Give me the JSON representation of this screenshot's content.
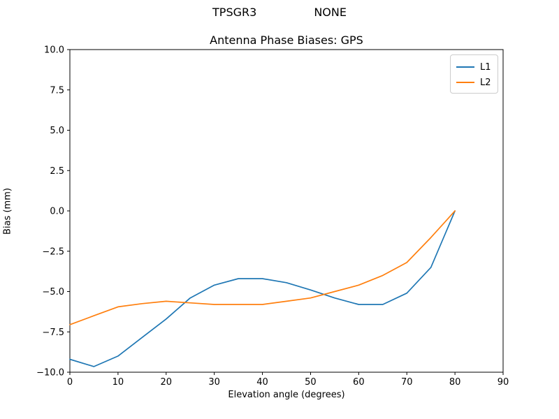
{
  "figure": {
    "background": "#ffffff",
    "suptitle_left": "TPSGR3",
    "suptitle_right": "NONE"
  },
  "chart_data": {
    "type": "line",
    "title": "Antenna Phase Biases: GPS",
    "xlabel": "Elevation angle (degrees)",
    "ylabel": "Bias (mm)",
    "xlim": [
      0,
      90
    ],
    "ylim": [
      -10,
      10
    ],
    "grid": false,
    "legend_position": "upper right",
    "xticks": [
      0,
      10,
      20,
      30,
      40,
      50,
      60,
      70,
      80,
      90
    ],
    "xtick_labels": [
      "0",
      "10",
      "20",
      "30",
      "40",
      "50",
      "60",
      "70",
      "80",
      "90"
    ],
    "yticks": [
      10,
      7.5,
      5,
      2.5,
      0,
      -2.5,
      -5,
      -7.5,
      -10
    ],
    "ytick_labels": [
      "10.0",
      "7.5",
      "5.0",
      "2.5",
      "0.0",
      "−2.5",
      "−5.0",
      "−7.5",
      "−10.0"
    ],
    "x": [
      0,
      5,
      10,
      15,
      20,
      25,
      30,
      35,
      40,
      45,
      50,
      55,
      60,
      65,
      70,
      75,
      80
    ],
    "series": [
      {
        "name": "L1",
        "color": "#1f77b4",
        "values": [
          -9.2,
          -9.65,
          -9.0,
          -7.85,
          -6.7,
          -5.4,
          -4.6,
          -4.2,
          -4.2,
          -4.45,
          -4.9,
          -5.4,
          -5.8,
          -5.8,
          -5.1,
          -3.5,
          0.0
        ]
      },
      {
        "name": "L2",
        "color": "#ff7f0e",
        "values": [
          -7.05,
          -6.5,
          -5.95,
          -5.75,
          -5.6,
          -5.7,
          -5.8,
          -5.8,
          -5.8,
          -5.6,
          -5.4,
          -5.0,
          -4.6,
          -4.0,
          -3.2,
          -1.65,
          0.0
        ]
      }
    ]
  }
}
